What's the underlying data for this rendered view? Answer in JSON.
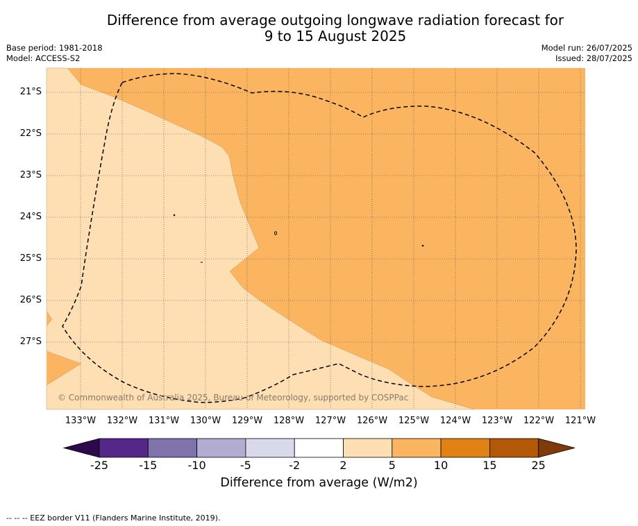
{
  "title": {
    "line1": "Difference from average outgoing longwave radiation forecast for",
    "line2": "9 to 15 August 2025"
  },
  "info_left": {
    "base_period": "Base period: 1981-2018",
    "model": "Model: ACCESS-S2"
  },
  "info_right": {
    "model_run": "Model run: 26/07/2025",
    "issued": "Issued: 28/07/2025"
  },
  "map": {
    "extent": {
      "lon": [
        -133.8,
        -120.95
      ],
      "lat": [
        -28.6,
        -20.4
      ]
    },
    "lat_labels": [
      "21°S",
      "22°S",
      "23°S",
      "24°S",
      "25°S",
      "26°S",
      "27°S"
    ],
    "lon_labels": [
      "133°W",
      "132°W",
      "131°W",
      "130°W",
      "129°W",
      "128°W",
      "127°W",
      "126°W",
      "125°W",
      "124°W",
      "123°W",
      "122°W",
      "121°W"
    ],
    "regions": [
      {
        "category": "2 to 5",
        "color": "#fddfb3"
      },
      {
        "category": "5 to 10",
        "color": "#fbb560"
      }
    ],
    "gridlines": true,
    "eez_border": "dashed"
  },
  "copyright": "© Commonwealth of Australia 2025, Bureau of Meteorology, supported by COSPPac",
  "colorbar": {
    "ticks": [
      "-25",
      "-15",
      "-10",
      "-5",
      "-2",
      "2",
      "5",
      "10",
      "15",
      "25"
    ],
    "colors": [
      "#2c0a4c",
      "#542788",
      "#8073ac",
      "#b2abd2",
      "#d8daeb",
      "#ffffff",
      "#fddfb3",
      "#fbb560",
      "#e08214",
      "#b35806",
      "#7f3b08"
    ],
    "label": "Difference from average (W/m2)"
  },
  "footer": "-- -- -- EEZ border V11 (Flanders Marine Institute, 2019)."
}
